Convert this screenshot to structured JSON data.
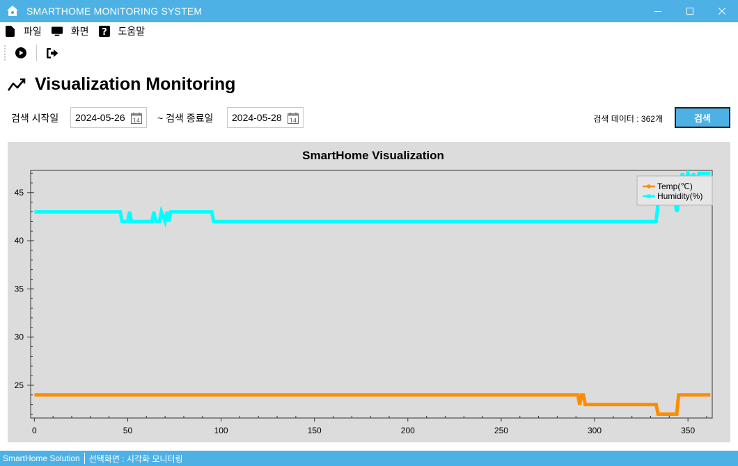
{
  "window": {
    "title": "SMARTHOME MONITORING SYSTEM"
  },
  "menu": {
    "items": [
      {
        "label": "파일",
        "icon": "file-icon"
      },
      {
        "label": "화면",
        "icon": "monitor-icon"
      },
      {
        "label": "도움말",
        "icon": "help-icon"
      }
    ]
  },
  "toolbar": {
    "buttons": [
      {
        "icon": "play-circle-icon"
      },
      {
        "icon": "exit-icon"
      }
    ]
  },
  "page": {
    "title": "Visualization Monitoring",
    "icon": "chart-line-icon"
  },
  "search": {
    "start_label": "검색 시작일",
    "start_value": "2024-05-26",
    "end_label": "~ 검색 종료일",
    "end_value": "2024-05-28",
    "calendar_day": "14",
    "count_text": "검색 데이터 : 362개",
    "button_label": "검색"
  },
  "chart_data": {
    "type": "line",
    "title": "SmartHome Visualization",
    "xlim": [
      -2,
      363
    ],
    "ylim": [
      21.6,
      47.3
    ],
    "xticks": [
      0,
      50,
      100,
      150,
      200,
      250,
      300,
      350
    ],
    "yticks": [
      25,
      30,
      35,
      40,
      45
    ],
    "legend": "top-right",
    "series": [
      {
        "name": "Temp(℃)",
        "color": "#ff8c00",
        "segments": [
          [
            0,
            24
          ],
          [
            291,
            24
          ],
          [
            292,
            23
          ],
          [
            293,
            24
          ],
          [
            294,
            24
          ],
          [
            295,
            23
          ],
          [
            333,
            23
          ],
          [
            334,
            22
          ],
          [
            344,
            22
          ],
          [
            345,
            24
          ],
          [
            362,
            24
          ]
        ]
      },
      {
        "name": "Humidity(%)",
        "color": "#00ffff",
        "segments": [
          [
            0,
            43
          ],
          [
            46,
            43
          ],
          [
            47,
            42
          ],
          [
            50,
            42
          ],
          [
            51,
            43
          ],
          [
            52,
            42
          ],
          [
            63,
            42
          ],
          [
            64,
            43
          ],
          [
            65,
            42
          ],
          [
            67,
            42
          ],
          [
            68,
            43
          ],
          [
            70,
            42
          ],
          [
            71,
            43
          ],
          [
            72,
            42
          ],
          [
            73,
            43
          ],
          [
            95,
            43
          ],
          [
            96,
            42
          ],
          [
            333,
            42
          ],
          [
            334,
            44
          ],
          [
            343,
            44
          ],
          [
            344,
            43
          ],
          [
            345,
            44
          ],
          [
            347,
            47
          ],
          [
            348,
            46
          ],
          [
            350,
            47
          ],
          [
            352,
            46
          ],
          [
            353,
            47
          ],
          [
            354,
            46
          ],
          [
            356,
            47
          ],
          [
            362,
            47
          ]
        ]
      }
    ]
  },
  "status": {
    "app_name": "SmartHome Solution",
    "selected": "선택화면 : 시각화 모니터링"
  },
  "colors": {
    "accent": "#4db1e6",
    "temp": "#ff8c00",
    "humidity": "#00ffff",
    "plot_bg": "#dcdcdc"
  }
}
